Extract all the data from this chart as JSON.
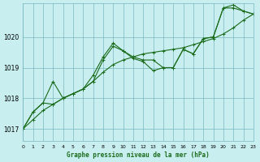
{
  "title": "Graphe pression niveau de la mer (hPa)",
  "background_color": "#c8eef0",
  "grid_color": "#7ab8c0",
  "line_color": "#1a6b1a",
  "x_min": 0,
  "x_max": 23,
  "y_min": 1016.6,
  "y_max": 1021.1,
  "yticks": [
    1017,
    1018,
    1019,
    1020
  ],
  "series1": {
    "x": [
      0,
      1,
      2,
      3,
      4,
      5,
      6,
      7,
      8,
      9,
      10,
      11,
      12,
      13,
      14,
      15,
      16,
      17,
      18,
      19,
      20,
      21,
      22,
      23
    ],
    "y": [
      1017.0,
      1017.55,
      1017.85,
      1017.8,
      1018.0,
      1018.15,
      1018.3,
      1018.55,
      1019.25,
      1019.7,
      1019.55,
      1019.35,
      1019.25,
      1019.25,
      1019.0,
      1019.0,
      1019.6,
      1019.45,
      1019.95,
      1020.0,
      1020.95,
      1020.95,
      1020.85,
      1020.75
    ]
  },
  "series2": {
    "x": [
      0,
      1,
      2,
      3,
      4,
      5,
      6,
      7,
      8,
      9,
      10,
      11,
      12,
      13,
      14,
      15,
      16,
      17,
      18,
      19,
      20,
      21,
      22,
      23
    ],
    "y": [
      1017.0,
      1017.55,
      1017.85,
      1018.55,
      1018.0,
      1018.15,
      1018.3,
      1018.75,
      1019.35,
      1019.8,
      1019.55,
      1019.3,
      1019.2,
      1018.9,
      1019.0,
      1019.0,
      1019.6,
      1019.45,
      1019.95,
      1020.0,
      1020.95,
      1021.05,
      1020.85,
      1020.75
    ]
  },
  "series3": {
    "x": [
      0,
      1,
      2,
      3,
      4,
      5,
      6,
      7,
      8,
      9,
      10,
      11,
      12,
      13,
      14,
      15,
      16,
      17,
      18,
      19,
      20,
      21,
      22,
      23
    ],
    "y": [
      1017.0,
      1017.3,
      1017.6,
      1017.8,
      1018.0,
      1018.15,
      1018.3,
      1018.55,
      1018.85,
      1019.1,
      1019.25,
      1019.35,
      1019.45,
      1019.5,
      1019.55,
      1019.6,
      1019.65,
      1019.75,
      1019.85,
      1019.95,
      1020.1,
      1020.3,
      1020.55,
      1020.75
    ]
  }
}
